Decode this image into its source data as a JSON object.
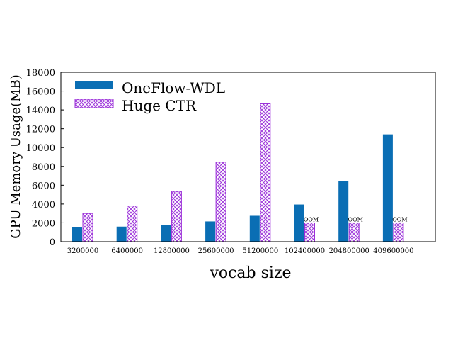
{
  "chart_data": {
    "type": "bar",
    "title": "",
    "xlabel": "vocab size",
    "ylabel": "GPU Memory Usage(MB)",
    "ylim": [
      0,
      18000
    ],
    "yticks": [
      0,
      2000,
      4000,
      6000,
      8000,
      10000,
      12000,
      14000,
      16000,
      18000
    ],
    "categories": [
      "3200000",
      "6400000",
      "12800000",
      "25600000",
      "51200000",
      "102400000",
      "204800000",
      "409600000"
    ],
    "series": [
      {
        "name": "OneFlow-WDL",
        "color": "#0a6eb4",
        "pattern": "solid",
        "values": [
          1550,
          1600,
          1750,
          2150,
          2750,
          3950,
          6450,
          11400
        ]
      },
      {
        "name": "Huge CTR",
        "color": "#9b30d9",
        "pattern": "crosshatch",
        "values": [
          3000,
          3800,
          5350,
          8450,
          14650,
          2000,
          2000,
          2000
        ],
        "labels": [
          "",
          "",
          "",
          "",
          "",
          "OOM",
          "OOM",
          "OOM"
        ]
      }
    ],
    "legend_position": "top-left",
    "grid": false
  }
}
